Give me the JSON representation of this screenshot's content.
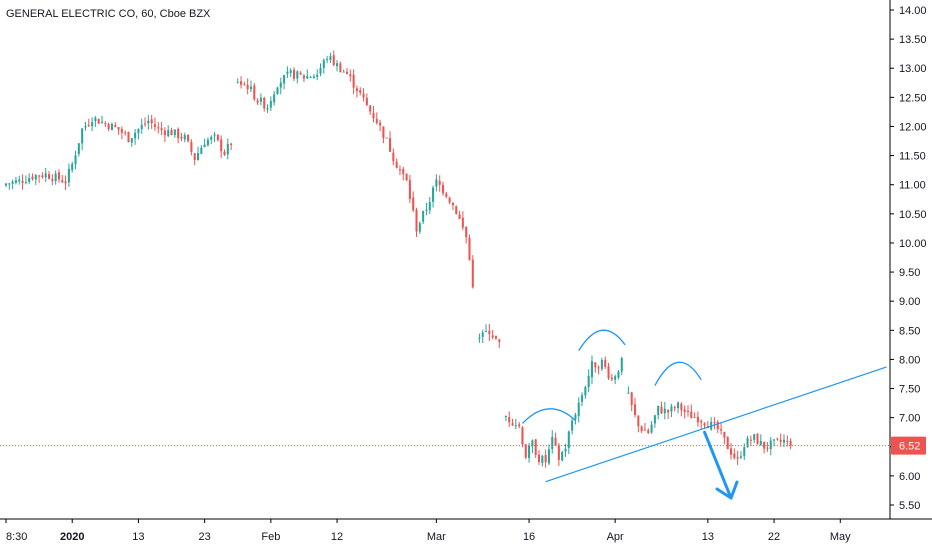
{
  "title": "GENERAL ELECTRIC CO, 60, Cboe BZX",
  "colors": {
    "up": "#26a69a",
    "down": "#ef5350",
    "grid_axis": "#000000",
    "price_line": "#ef5350",
    "drawing": "#2196f3",
    "badge": "#ef5350"
  },
  "chart_data": {
    "type": "candlestick",
    "title": "GENERAL ELECTRIC CO, 60, Cboe BZX",
    "ylim": [
      5.25,
      14.2
    ],
    "y_ticks": [
      "14.00",
      "13.50",
      "13.00",
      "12.50",
      "12.00",
      "11.50",
      "11.00",
      "10.50",
      "10.00",
      "9.50",
      "9.00",
      "8.50",
      "8.00",
      "7.50",
      "7.00",
      "6.50",
      "6.00",
      "5.50"
    ],
    "x_ticks": [
      {
        "label": "8:30",
        "idx": 0,
        "bold": false
      },
      {
        "label": "2020",
        "idx": 20,
        "bold": true
      },
      {
        "label": "13",
        "idx": 40,
        "bold": false
      },
      {
        "label": "23",
        "idx": 60,
        "bold": false
      },
      {
        "label": "Feb",
        "idx": 80,
        "bold": false
      },
      {
        "label": "12",
        "idx": 100,
        "bold": false
      },
      {
        "label": "Mar",
        "idx": 130,
        "bold": false
      },
      {
        "label": "16",
        "idx": 158,
        "bold": false
      },
      {
        "label": "Apr",
        "idx": 184,
        "bold": false
      },
      {
        "label": "13",
        "idx": 212,
        "bold": false
      },
      {
        "label": "22",
        "idx": 232,
        "bold": false
      },
      {
        "label": "May",
        "idx": 252,
        "bold": false
      }
    ],
    "last_price": "6.52",
    "last_price_value": 6.52,
    "anchors": [
      [
        0,
        11.02
      ],
      [
        4,
        11.06
      ],
      [
        8,
        11.15
      ],
      [
        12,
        11.18
      ],
      [
        15,
        11.12
      ],
      [
        18,
        11.06
      ],
      [
        20,
        11.35
      ],
      [
        23,
        11.95
      ],
      [
        26,
        12.15
      ],
      [
        30,
        12.05
      ],
      [
        34,
        11.95
      ],
      [
        37,
        11.8
      ],
      [
        40,
        11.95
      ],
      [
        43,
        12.1
      ],
      [
        46,
        11.95
      ],
      [
        50,
        11.9
      ],
      [
        54,
        11.8
      ],
      [
        57,
        11.45
      ],
      [
        60,
        11.75
      ],
      [
        63,
        11.8
      ],
      [
        66,
        11.55
      ],
      [
        69,
        11.8
      ],
      [
        70,
        12.75
      ],
      [
        73,
        12.7
      ],
      [
        76,
        12.45
      ],
      [
        79,
        12.35
      ],
      [
        82,
        12.75
      ],
      [
        86,
        12.9
      ],
      [
        90,
        12.85
      ],
      [
        94,
        12.9
      ],
      [
        97,
        13.2
      ],
      [
        100,
        13.05
      ],
      [
        103,
        12.9
      ],
      [
        106,
        12.65
      ],
      [
        109,
        12.35
      ],
      [
        112,
        12.1
      ],
      [
        115,
        11.75
      ],
      [
        118,
        11.35
      ],
      [
        121,
        11.05
      ],
      [
        124,
        10.25
      ],
      [
        127,
        10.6
      ],
      [
        130,
        11.05
      ],
      [
        133,
        10.85
      ],
      [
        136,
        10.55
      ],
      [
        139,
        10.1
      ],
      [
        141,
        9.3
      ],
      [
        143,
        8.35
      ],
      [
        146,
        8.5
      ],
      [
        149,
        8.25
      ],
      [
        151,
        7.0
      ],
      [
        153,
        6.95
      ],
      [
        155,
        6.85
      ],
      [
        157,
        6.35
      ],
      [
        159,
        6.55
      ],
      [
        161,
        6.3
      ],
      [
        163,
        6.25
      ],
      [
        165,
        6.6
      ],
      [
        167,
        6.3
      ],
      [
        169,
        6.5
      ],
      [
        171,
        6.95
      ],
      [
        174,
        7.4
      ],
      [
        177,
        7.9
      ],
      [
        180,
        7.95
      ],
      [
        183,
        7.65
      ],
      [
        186,
        7.95
      ],
      [
        188,
        7.35
      ],
      [
        191,
        6.85
      ],
      [
        194,
        6.75
      ],
      [
        197,
        7.15
      ],
      [
        200,
        7.1
      ],
      [
        203,
        7.2
      ],
      [
        206,
        7.05
      ],
      [
        209,
        7.0
      ],
      [
        212,
        6.9
      ],
      [
        215,
        6.8
      ],
      [
        218,
        6.5
      ],
      [
        221,
        6.25
      ],
      [
        223,
        6.55
      ],
      [
        226,
        6.65
      ],
      [
        229,
        6.5
      ],
      [
        232,
        6.55
      ],
      [
        235,
        6.6
      ],
      [
        237,
        6.52
      ]
    ],
    "gaps": [
      69,
      142,
      150,
      187
    ],
    "x_domain": [
      0,
      264
    ],
    "trend_line": {
      "start": [
        163,
        5.9
      ],
      "end": [
        266,
        7.87
      ]
    },
    "arcs": [
      {
        "from": [
          156,
          6.9
        ],
        "peak": [
          164,
          7.15
        ],
        "to": [
          172,
          6.95
        ]
      },
      {
        "from": [
          173,
          8.15
        ],
        "peak": [
          180,
          8.5
        ],
        "to": [
          187,
          8.25
        ]
      },
      {
        "from": [
          196,
          7.55
        ],
        "peak": [
          203,
          7.95
        ],
        "to": [
          210,
          7.65
        ]
      }
    ],
    "arrow": {
      "from": [
        211,
        6.75
      ],
      "to": [
        219,
        5.62
      ]
    }
  }
}
